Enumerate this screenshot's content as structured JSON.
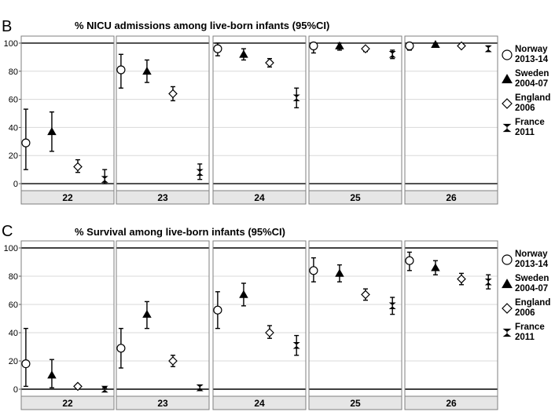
{
  "legend": {
    "items": [
      {
        "line1": "Norway",
        "line2": "2013-14",
        "marker": "circle"
      },
      {
        "line1": "Sweden",
        "line2": "2004-07",
        "marker": "triangle"
      },
      {
        "line1": "England",
        "line2": "2006",
        "marker": "diamond"
      },
      {
        "line1": "France",
        "line2": "2011",
        "marker": "bowtie"
      }
    ]
  },
  "chart_data": [
    {
      "panel": "B",
      "type": "scatter",
      "title": "% NICU admissions among live-born infants (95%CI)",
      "facets": [
        "22",
        "23",
        "24",
        "25",
        "26"
      ],
      "ylim": [
        -5,
        105
      ],
      "yticks": [
        0,
        20,
        40,
        60,
        80,
        100
      ],
      "reference_lines": [
        0,
        100
      ],
      "grid": true,
      "legend_position": "right",
      "series": [
        {
          "name": "Norway 2013-14",
          "marker": "circle",
          "values": [
            29,
            81,
            96,
            98,
            98
          ],
          "lower": [
            10,
            68,
            91,
            93,
            95
          ],
          "upper": [
            53,
            92,
            100,
            100,
            100
          ]
        },
        {
          "name": "Sweden 2004-07",
          "marker": "triangle",
          "values": [
            37,
            80,
            92,
            98,
            99
          ],
          "lower": [
            23,
            72,
            88,
            95,
            97
          ],
          "upper": [
            51,
            88,
            96,
            100,
            100
          ]
        },
        {
          "name": "England 2006",
          "marker": "diamond",
          "values": [
            12,
            64,
            86,
            96,
            98
          ],
          "lower": [
            8,
            59,
            83,
            94,
            97
          ],
          "upper": [
            17,
            69,
            89,
            97,
            99
          ]
        },
        {
          "name": "France 2011",
          "marker": "bowtie",
          "values": [
            3,
            8,
            61,
            92,
            96
          ],
          "lower": [
            0,
            3,
            54,
            89,
            94
          ],
          "upper": [
            10,
            14,
            68,
            95,
            98
          ]
        }
      ]
    },
    {
      "panel": "C",
      "type": "scatter",
      "title": "% Survival among live-born infants (95%CI)",
      "facets": [
        "22",
        "23",
        "24",
        "25",
        "26"
      ],
      "ylim": [
        -5,
        105
      ],
      "yticks": [
        0,
        20,
        40,
        60,
        80,
        100
      ],
      "reference_lines": [
        0,
        100
      ],
      "grid": true,
      "legend_position": "right",
      "series": [
        {
          "name": "Norway 2013-14",
          "marker": "circle",
          "values": [
            18,
            29,
            56,
            84,
            91
          ],
          "lower": [
            2,
            15,
            43,
            76,
            84
          ],
          "upper": [
            43,
            43,
            69,
            93,
            97
          ]
        },
        {
          "name": "Sweden 2004-07",
          "marker": "triangle",
          "values": [
            10,
            53,
            67,
            82,
            86
          ],
          "lower": [
            1,
            43,
            59,
            76,
            81
          ],
          "upper": [
            21,
            62,
            75,
            88,
            91
          ]
        },
        {
          "name": "England 2006",
          "marker": "diamond",
          "values": [
            2,
            20,
            40,
            67,
            78
          ],
          "lower": [
            1,
            16,
            36,
            63,
            74
          ],
          "upper": [
            3,
            24,
            45,
            71,
            82
          ]
        },
        {
          "name": "France 2011",
          "marker": "bowtie",
          "values": [
            0,
            1,
            31,
            59,
            76
          ],
          "lower": [
            0,
            0,
            24,
            53,
            71
          ],
          "upper": [
            1,
            3,
            38,
            65,
            81
          ]
        }
      ]
    }
  ]
}
